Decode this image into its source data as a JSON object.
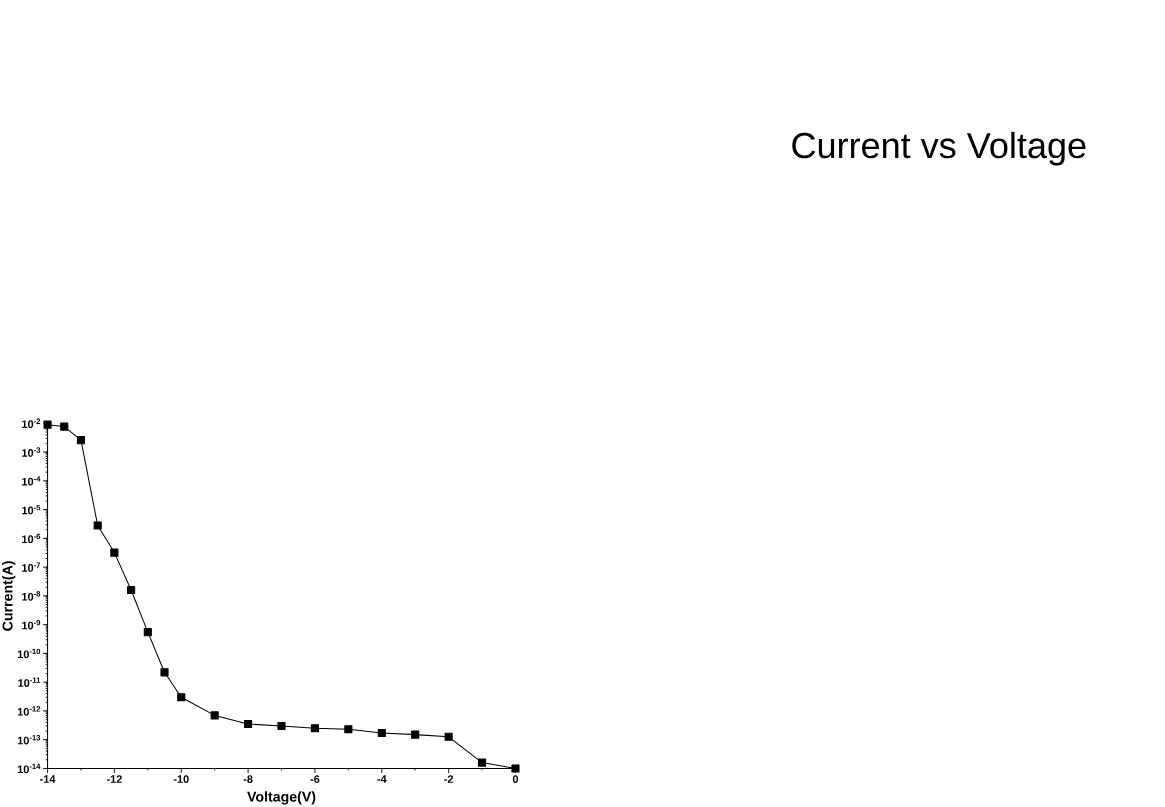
{
  "chart_data": {
    "type": "line",
    "title": "Current vs Voltage",
    "xlabel": "Voltage(V)",
    "ylabel": "Current(A)",
    "log": "y",
    "marker": "square",
    "line_style": "solid",
    "grid": false,
    "x": [
      -14,
      -13.5,
      -13,
      -12.5,
      -12,
      -11.5,
      -11,
      -10.5,
      -10,
      -9,
      -8,
      -7,
      -6,
      -5,
      -4,
      -3,
      -2,
      -1,
      0
    ],
    "series": [
      {
        "color": "#000000",
        "values": [
          0.009,
          0.0077,
          0.0026,
          2.8e-06,
          3.2e-07,
          1.6e-08,
          5.5e-10,
          2.2e-11,
          3e-12,
          7e-13,
          3.5e-13,
          3e-13,
          2.5e-13,
          2.3e-13,
          1.7e-13,
          1.5e-13,
          1.26e-13,
          1.6e-14,
          1e-14
        ]
      }
    ],
    "xlim": [
      -14,
      0
    ],
    "xticks": [
      -14,
      -12,
      -10,
      -8,
      -6,
      -4,
      -2,
      0
    ],
    "ylim": [
      1e-14,
      0.01
    ],
    "yticks": [
      {
        "value": 1e-14,
        "label": "10$^{-14}$"
      },
      {
        "value": 1e-13,
        "label": "10$^{-13}$"
      },
      {
        "value": 1e-12,
        "label": "10$^{-12}$"
      },
      {
        "value": 1e-11,
        "label": "10$^{-11}$"
      },
      {
        "value": 1e-10,
        "label": "10$^{-10}$"
      },
      {
        "value": 1e-09,
        "label": "10$^{-9}$"
      },
      {
        "value": 1e-08,
        "label": "10$^{-8}$"
      },
      {
        "value": 1e-07,
        "label": "10$^{-7}$"
      },
      {
        "value": 1e-06,
        "label": "10$^{-6}$"
      },
      {
        "value": 1e-05,
        "label": "10$^{-5}$"
      },
      {
        "value": 0.0001,
        "label": "10$^{-4}$"
      },
      {
        "value": 0.001,
        "label": "10$^{-3}$"
      },
      {
        "value": 0.01,
        "label": "10$^{-2}$"
      }
    ]
  }
}
